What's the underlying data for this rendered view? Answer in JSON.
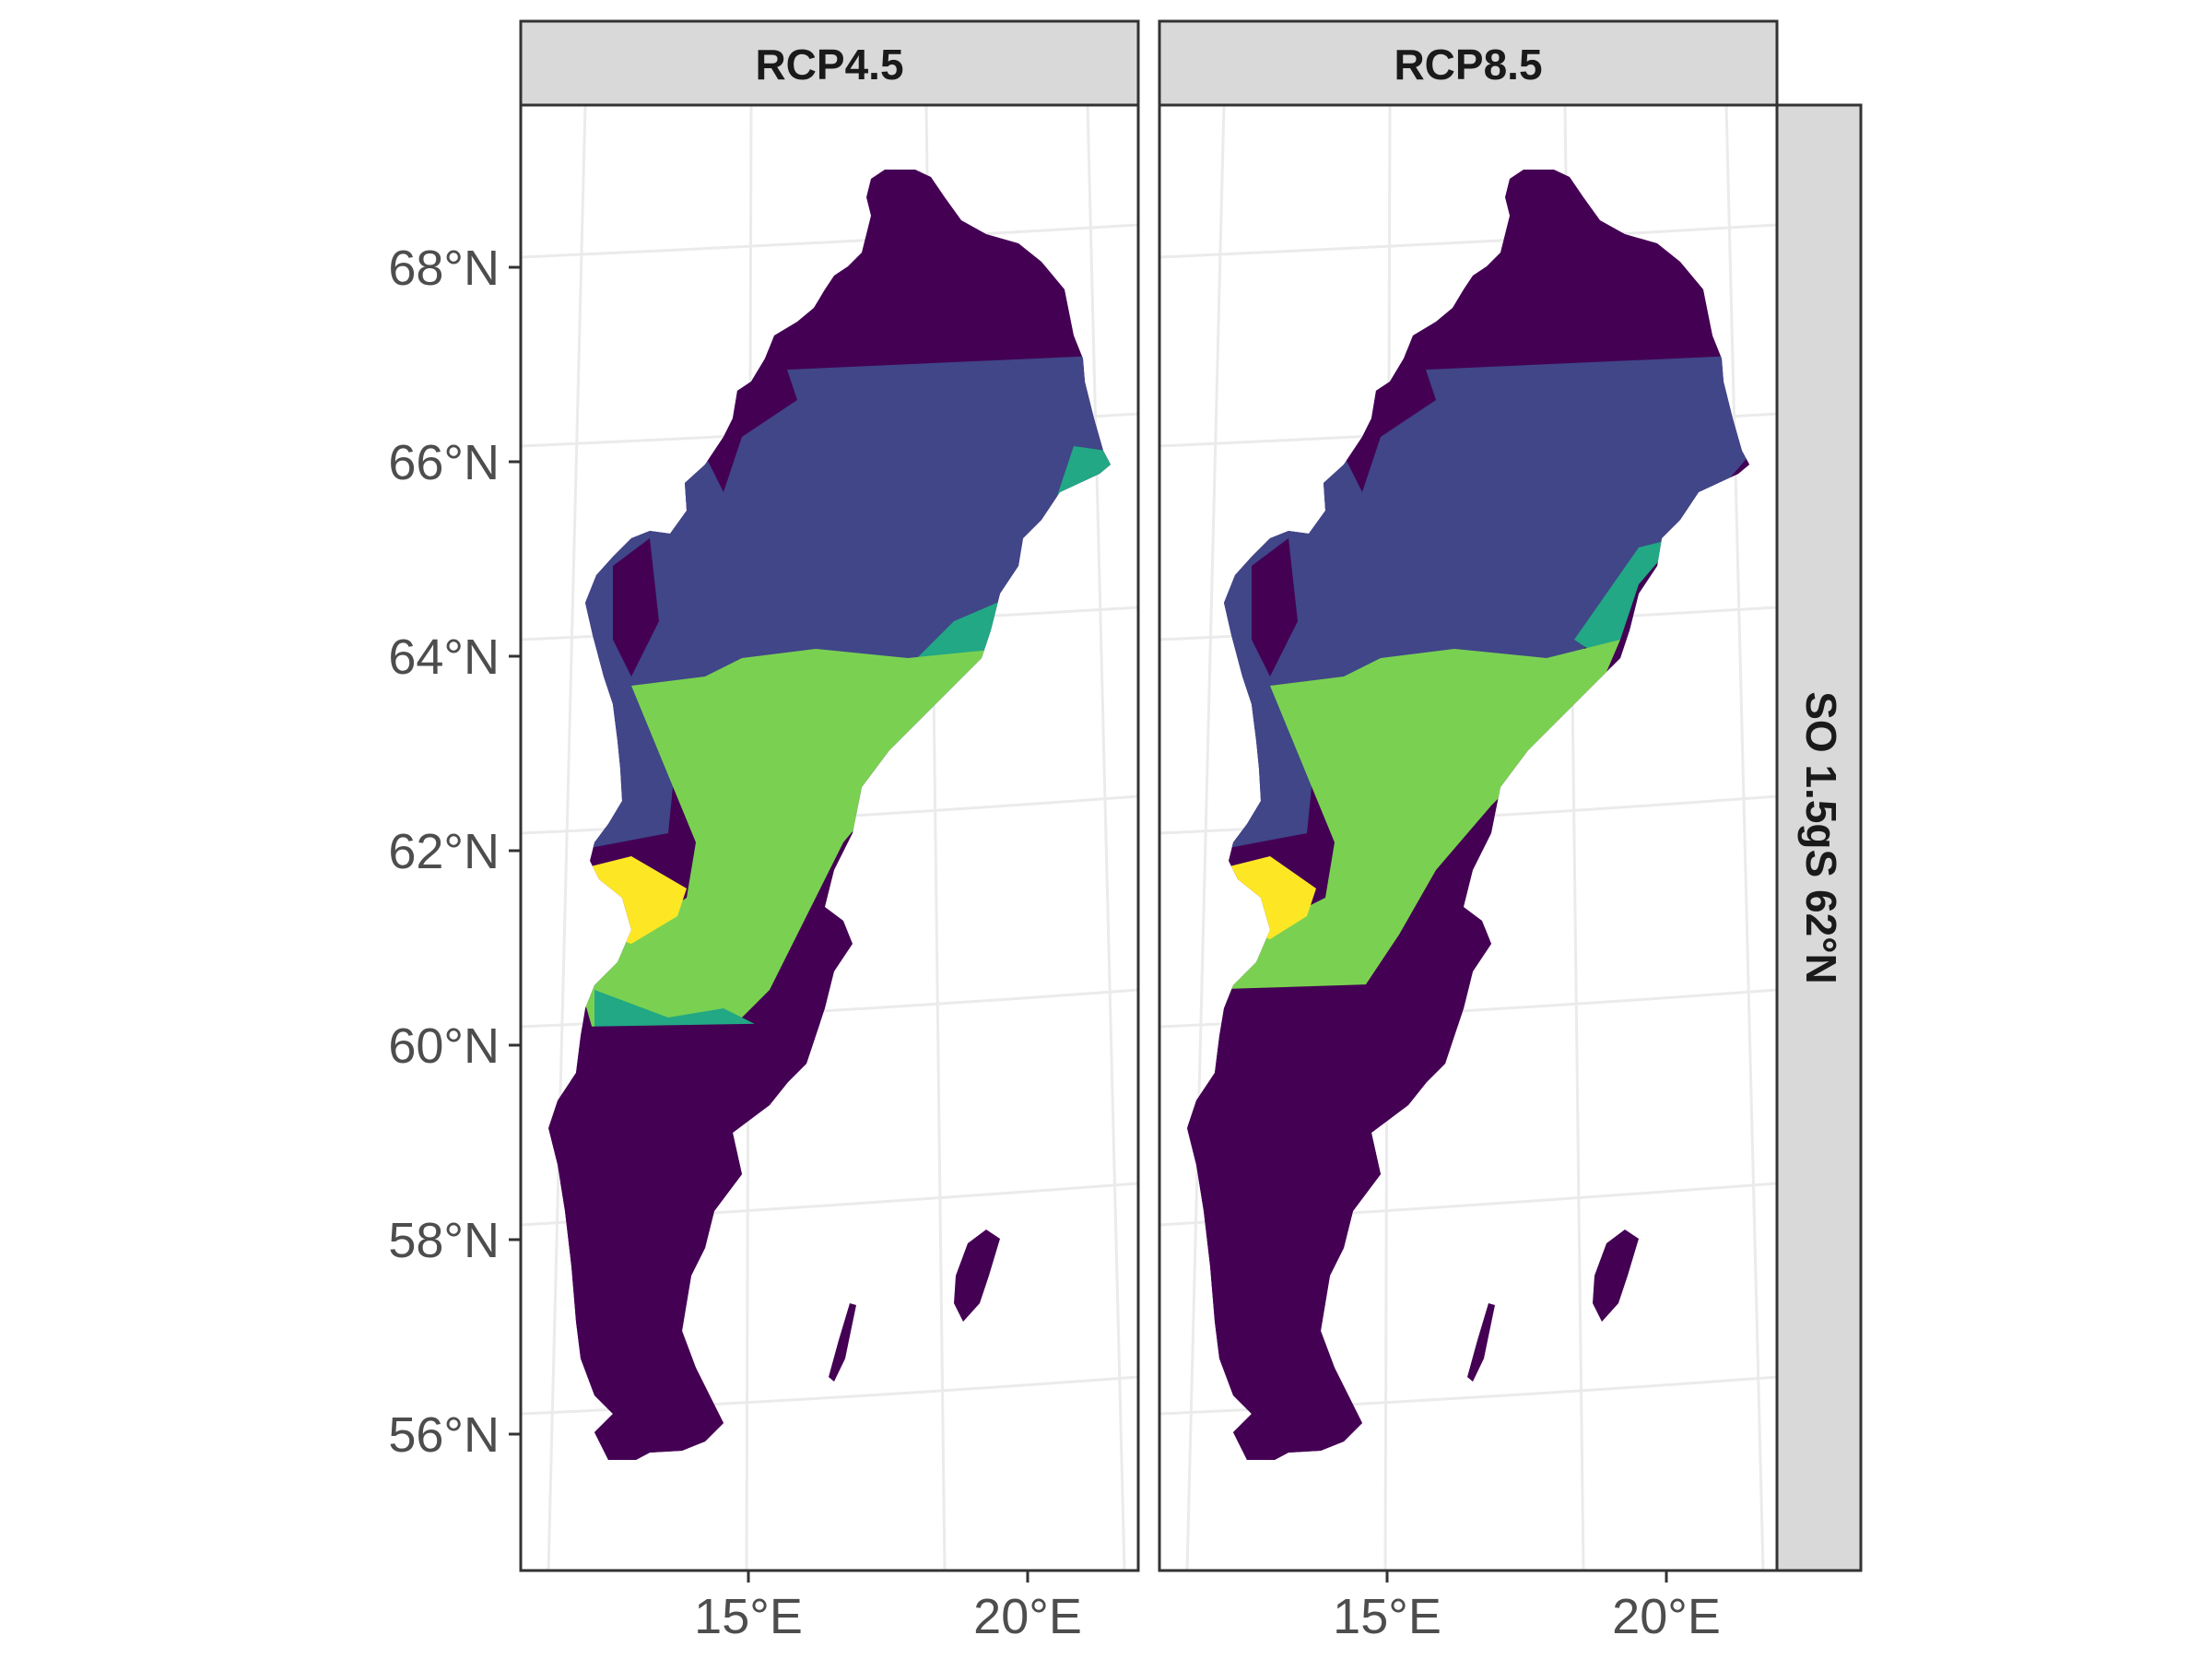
{
  "chart_data": {
    "type": "map",
    "region": "Sweden",
    "row_strip": "SO 1.5gS 62°N",
    "panels": [
      {
        "label": "RCP4.5",
        "lat_boundaries": {
          "northern_class_start": 67.1,
          "transition_south": 59.9
        }
      },
      {
        "label": "RCP8.5",
        "lat_boundaries": {
          "northern_class_start": 67.1,
          "transition_south": 60.1
        }
      }
    ],
    "y_ticks": [
      "56°N",
      "58°N",
      "60°N",
      "62°N",
      "64°N",
      "66°N",
      "68°N"
    ],
    "x_ticks": [
      "15°E",
      "20°E"
    ],
    "palette": {
      "dark_purple": "#440154",
      "blue": "#404688",
      "teal": "#22a884",
      "green": "#7ad151",
      "yellow": "#fde725"
    },
    "colors": {
      "strip_bg": "#d9d9d9",
      "grid": "#ebebeb",
      "frame": "#333333"
    }
  }
}
